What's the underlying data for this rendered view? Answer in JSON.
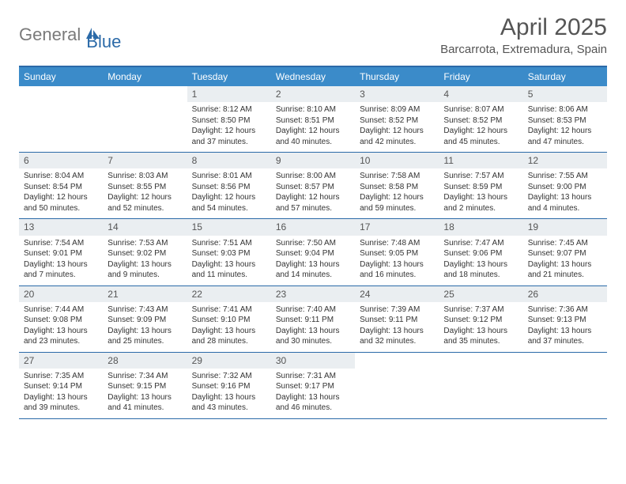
{
  "logo": {
    "word1": "General",
    "word2": "Blue"
  },
  "title": "April 2025",
  "location": "Barcarrota, Extremadura, Spain",
  "colors": {
    "header_bar": "#3b8bc9",
    "border": "#2b6aa8",
    "daynum_bg": "#eaeef1",
    "text": "#333333",
    "title_text": "#555555",
    "logo_gray": "#7a7a7a",
    "logo_blue": "#2b6aa8",
    "background": "#ffffff"
  },
  "day_names": [
    "Sunday",
    "Monday",
    "Tuesday",
    "Wednesday",
    "Thursday",
    "Friday",
    "Saturday"
  ],
  "weeks": [
    [
      {
        "n": "",
        "sr": "",
        "ss": "",
        "dl": ""
      },
      {
        "n": "",
        "sr": "",
        "ss": "",
        "dl": ""
      },
      {
        "n": "1",
        "sr": "Sunrise: 8:12 AM",
        "ss": "Sunset: 8:50 PM",
        "dl": "Daylight: 12 hours and 37 minutes."
      },
      {
        "n": "2",
        "sr": "Sunrise: 8:10 AM",
        "ss": "Sunset: 8:51 PM",
        "dl": "Daylight: 12 hours and 40 minutes."
      },
      {
        "n": "3",
        "sr": "Sunrise: 8:09 AM",
        "ss": "Sunset: 8:52 PM",
        "dl": "Daylight: 12 hours and 42 minutes."
      },
      {
        "n": "4",
        "sr": "Sunrise: 8:07 AM",
        "ss": "Sunset: 8:52 PM",
        "dl": "Daylight: 12 hours and 45 minutes."
      },
      {
        "n": "5",
        "sr": "Sunrise: 8:06 AM",
        "ss": "Sunset: 8:53 PM",
        "dl": "Daylight: 12 hours and 47 minutes."
      }
    ],
    [
      {
        "n": "6",
        "sr": "Sunrise: 8:04 AM",
        "ss": "Sunset: 8:54 PM",
        "dl": "Daylight: 12 hours and 50 minutes."
      },
      {
        "n": "7",
        "sr": "Sunrise: 8:03 AM",
        "ss": "Sunset: 8:55 PM",
        "dl": "Daylight: 12 hours and 52 minutes."
      },
      {
        "n": "8",
        "sr": "Sunrise: 8:01 AM",
        "ss": "Sunset: 8:56 PM",
        "dl": "Daylight: 12 hours and 54 minutes."
      },
      {
        "n": "9",
        "sr": "Sunrise: 8:00 AM",
        "ss": "Sunset: 8:57 PM",
        "dl": "Daylight: 12 hours and 57 minutes."
      },
      {
        "n": "10",
        "sr": "Sunrise: 7:58 AM",
        "ss": "Sunset: 8:58 PM",
        "dl": "Daylight: 12 hours and 59 minutes."
      },
      {
        "n": "11",
        "sr": "Sunrise: 7:57 AM",
        "ss": "Sunset: 8:59 PM",
        "dl": "Daylight: 13 hours and 2 minutes."
      },
      {
        "n": "12",
        "sr": "Sunrise: 7:55 AM",
        "ss": "Sunset: 9:00 PM",
        "dl": "Daylight: 13 hours and 4 minutes."
      }
    ],
    [
      {
        "n": "13",
        "sr": "Sunrise: 7:54 AM",
        "ss": "Sunset: 9:01 PM",
        "dl": "Daylight: 13 hours and 7 minutes."
      },
      {
        "n": "14",
        "sr": "Sunrise: 7:53 AM",
        "ss": "Sunset: 9:02 PM",
        "dl": "Daylight: 13 hours and 9 minutes."
      },
      {
        "n": "15",
        "sr": "Sunrise: 7:51 AM",
        "ss": "Sunset: 9:03 PM",
        "dl": "Daylight: 13 hours and 11 minutes."
      },
      {
        "n": "16",
        "sr": "Sunrise: 7:50 AM",
        "ss": "Sunset: 9:04 PM",
        "dl": "Daylight: 13 hours and 14 minutes."
      },
      {
        "n": "17",
        "sr": "Sunrise: 7:48 AM",
        "ss": "Sunset: 9:05 PM",
        "dl": "Daylight: 13 hours and 16 minutes."
      },
      {
        "n": "18",
        "sr": "Sunrise: 7:47 AM",
        "ss": "Sunset: 9:06 PM",
        "dl": "Daylight: 13 hours and 18 minutes."
      },
      {
        "n": "19",
        "sr": "Sunrise: 7:45 AM",
        "ss": "Sunset: 9:07 PM",
        "dl": "Daylight: 13 hours and 21 minutes."
      }
    ],
    [
      {
        "n": "20",
        "sr": "Sunrise: 7:44 AM",
        "ss": "Sunset: 9:08 PM",
        "dl": "Daylight: 13 hours and 23 minutes."
      },
      {
        "n": "21",
        "sr": "Sunrise: 7:43 AM",
        "ss": "Sunset: 9:09 PM",
        "dl": "Daylight: 13 hours and 25 minutes."
      },
      {
        "n": "22",
        "sr": "Sunrise: 7:41 AM",
        "ss": "Sunset: 9:10 PM",
        "dl": "Daylight: 13 hours and 28 minutes."
      },
      {
        "n": "23",
        "sr": "Sunrise: 7:40 AM",
        "ss": "Sunset: 9:11 PM",
        "dl": "Daylight: 13 hours and 30 minutes."
      },
      {
        "n": "24",
        "sr": "Sunrise: 7:39 AM",
        "ss": "Sunset: 9:11 PM",
        "dl": "Daylight: 13 hours and 32 minutes."
      },
      {
        "n": "25",
        "sr": "Sunrise: 7:37 AM",
        "ss": "Sunset: 9:12 PM",
        "dl": "Daylight: 13 hours and 35 minutes."
      },
      {
        "n": "26",
        "sr": "Sunrise: 7:36 AM",
        "ss": "Sunset: 9:13 PM",
        "dl": "Daylight: 13 hours and 37 minutes."
      }
    ],
    [
      {
        "n": "27",
        "sr": "Sunrise: 7:35 AM",
        "ss": "Sunset: 9:14 PM",
        "dl": "Daylight: 13 hours and 39 minutes."
      },
      {
        "n": "28",
        "sr": "Sunrise: 7:34 AM",
        "ss": "Sunset: 9:15 PM",
        "dl": "Daylight: 13 hours and 41 minutes."
      },
      {
        "n": "29",
        "sr": "Sunrise: 7:32 AM",
        "ss": "Sunset: 9:16 PM",
        "dl": "Daylight: 13 hours and 43 minutes."
      },
      {
        "n": "30",
        "sr": "Sunrise: 7:31 AM",
        "ss": "Sunset: 9:17 PM",
        "dl": "Daylight: 13 hours and 46 minutes."
      },
      {
        "n": "",
        "sr": "",
        "ss": "",
        "dl": ""
      },
      {
        "n": "",
        "sr": "",
        "ss": "",
        "dl": ""
      },
      {
        "n": "",
        "sr": "",
        "ss": "",
        "dl": ""
      }
    ]
  ]
}
